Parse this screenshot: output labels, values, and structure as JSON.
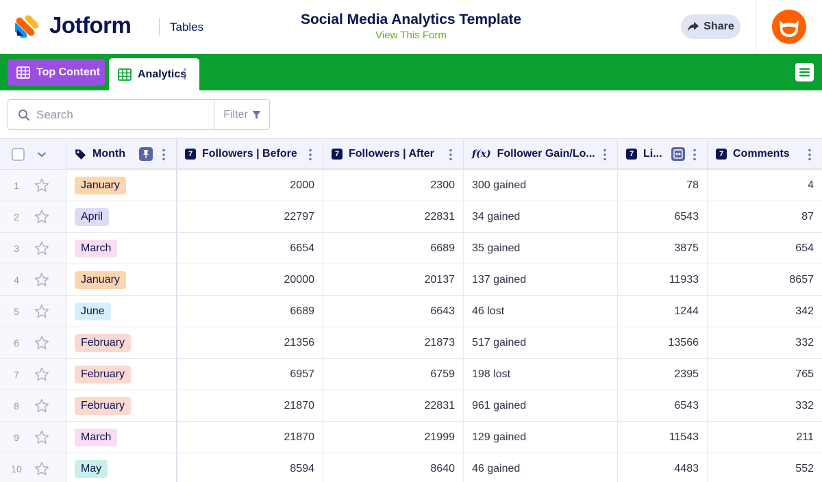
{
  "header": {
    "brand": "Jotform",
    "product": "Tables",
    "title": "Social Media Analytics Template",
    "view_form": "View This Form",
    "share_label": "Share"
  },
  "tabs": [
    {
      "label": "Top Content",
      "color": "#9c4ee3",
      "active": false
    },
    {
      "label": "Analytics",
      "active": true
    }
  ],
  "search": {
    "placeholder": "Search",
    "filter_label": "Filter"
  },
  "columns": [
    {
      "label": "Month",
      "icon": "tag-icon"
    },
    {
      "label": "Followers | Before",
      "icon": "number-icon"
    },
    {
      "label": "Followers | After",
      "icon": "number-icon"
    },
    {
      "label": "Follower Gain/Lo...",
      "icon": "formula-icon"
    },
    {
      "label": "Li...",
      "icon": "number-icon"
    },
    {
      "label": "Comments",
      "icon": "number-icon"
    }
  ],
  "month_colors": {
    "January": "#fdd5ae",
    "April": "#dcdcf6",
    "March": "#fbdcf2",
    "June": "#d6effd",
    "February": "#fcd8d0",
    "May": "#c9f0ea"
  },
  "rows": [
    {
      "n": "1",
      "month": "January",
      "before": "2000",
      "after": "2300",
      "gain": "300 gained",
      "likes": "78",
      "comments": "4"
    },
    {
      "n": "2",
      "month": "April",
      "before": "22797",
      "after": "22831",
      "gain": "34 gained",
      "likes": "6543",
      "comments": "87"
    },
    {
      "n": "3",
      "month": "March",
      "before": "6654",
      "after": "6689",
      "gain": "35 gained",
      "likes": "3875",
      "comments": "654"
    },
    {
      "n": "4",
      "month": "January",
      "before": "20000",
      "after": "20137",
      "gain": "137 gained",
      "likes": "11933",
      "comments": "8657"
    },
    {
      "n": "5",
      "month": "June",
      "before": "6689",
      "after": "6643",
      "gain": "46 lost",
      "likes": "1244",
      "comments": "342"
    },
    {
      "n": "6",
      "month": "February",
      "before": "21356",
      "after": "21873",
      "gain": "517 gained",
      "likes": "13566",
      "comments": "332"
    },
    {
      "n": "7",
      "month": "February",
      "before": "6957",
      "after": "6759",
      "gain": "198 lost",
      "likes": "2395",
      "comments": "765"
    },
    {
      "n": "8",
      "month": "February",
      "before": "21870",
      "after": "22831",
      "gain": "961 gained",
      "likes": "6543",
      "comments": "332"
    },
    {
      "n": "9",
      "month": "March",
      "before": "21870",
      "after": "21999",
      "gain": "129 gained",
      "likes": "11543",
      "comments": "211"
    },
    {
      "n": "10",
      "month": "May",
      "before": "8594",
      "after": "8640",
      "gain": "46 gained",
      "likes": "4483",
      "comments": "552"
    }
  ]
}
